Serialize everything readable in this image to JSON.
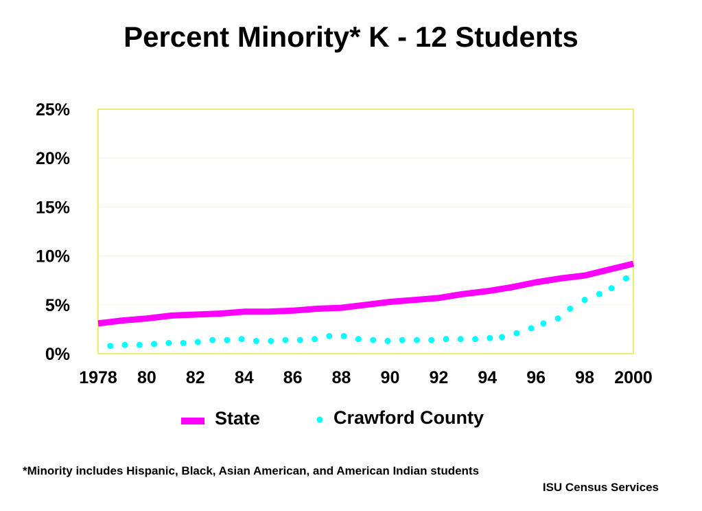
{
  "chart_data": {
    "type": "line",
    "title": "Percent Minority* K - 12 Students",
    "xlabel": "",
    "ylabel": "",
    "x_range": [
      1978,
      2000
    ],
    "ylim": [
      0,
      25
    ],
    "y_ticks": [
      0,
      5,
      10,
      15,
      20,
      25
    ],
    "y_tick_labels": [
      "0%",
      "5%",
      "10%",
      "15%",
      "20%",
      "25%"
    ],
    "x_ticks": [
      1978,
      1980,
      1982,
      1984,
      1986,
      1988,
      1990,
      1992,
      1994,
      1996,
      1998,
      2000
    ],
    "x_tick_labels": [
      "1978",
      "80",
      "82",
      "84",
      "86",
      "88",
      "90",
      "92",
      "94",
      "96",
      "98",
      "2000"
    ],
    "grid": true,
    "legend_placement": "bottom",
    "series": [
      {
        "name": "State",
        "style": "solid",
        "color": "#ff00ff",
        "x": [
          1978,
          1979,
          1980,
          1981,
          1982,
          1983,
          1984,
          1985,
          1986,
          1987,
          1988,
          1989,
          1990,
          1991,
          1992,
          1993,
          1994,
          1995,
          1996,
          1997,
          1998,
          1999,
          2000
        ],
        "values": [
          3.1,
          3.4,
          3.6,
          3.9,
          4.0,
          4.1,
          4.3,
          4.3,
          4.4,
          4.6,
          4.7,
          5.0,
          5.3,
          5.5,
          5.7,
          6.1,
          6.4,
          6.8,
          7.3,
          7.7,
          8.0,
          8.6,
          9.2
        ]
      },
      {
        "name": "Crawford County",
        "style": "dotted",
        "color": "#00ffff",
        "x": [
          1978.5,
          1979.1,
          1979.7,
          1980.3,
          1980.9,
          1981.5,
          1982.1,
          1982.7,
          1983.3,
          1983.9,
          1984.5,
          1985.1,
          1985.7,
          1986.3,
          1986.9,
          1987.5,
          1988.1,
          1988.7,
          1989.3,
          1989.9,
          1990.5,
          1991.1,
          1991.7,
          1992.3,
          1992.9,
          1993.5,
          1994.1,
          1994.6,
          1995.2,
          1995.8,
          1996.3,
          1996.9,
          1997.4,
          1998.0,
          1998.6,
          1999.1,
          1999.7
        ],
        "values": [
          0.8,
          0.9,
          0.9,
          1.0,
          1.1,
          1.1,
          1.2,
          1.4,
          1.4,
          1.5,
          1.3,
          1.3,
          1.4,
          1.4,
          1.5,
          1.8,
          1.8,
          1.5,
          1.4,
          1.3,
          1.4,
          1.4,
          1.4,
          1.5,
          1.5,
          1.5,
          1.6,
          1.7,
          2.1,
          2.6,
          3.1,
          3.6,
          4.6,
          5.5,
          6.1,
          6.7,
          7.7
        ]
      }
    ]
  },
  "footnote": "*Minority includes Hispanic, Black, Asian American, and American Indian students",
  "credit": "ISU Census Services"
}
